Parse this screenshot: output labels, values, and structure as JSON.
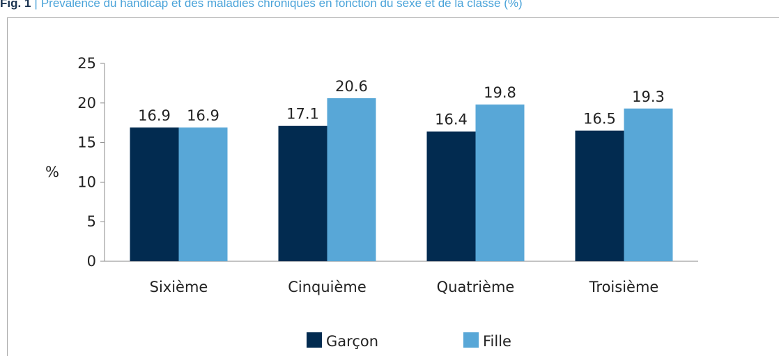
{
  "caption": {
    "label": "Fig. 1",
    "separator": "|",
    "text": "Prévalence du handicap et des maladies chroniques en fonction du sexe et de la classe (%)"
  },
  "chart_data": {
    "type": "bar",
    "ylabel": "%",
    "categories": [
      "Sixième",
      "Cinquième",
      "Quatrième",
      "Troisième"
    ],
    "series": [
      {
        "name": "Garçon",
        "color": "#022b50",
        "values": [
          16.9,
          17.1,
          16.4,
          16.5
        ]
      },
      {
        "name": "Fille",
        "color": "#58a7d7",
        "values": [
          16.9,
          20.6,
          19.8,
          19.3
        ]
      }
    ],
    "ylim": [
      0,
      25
    ],
    "yticks": [
      0,
      5,
      10,
      15,
      20,
      25
    ],
    "grid": false,
    "legend": "bottom"
  }
}
